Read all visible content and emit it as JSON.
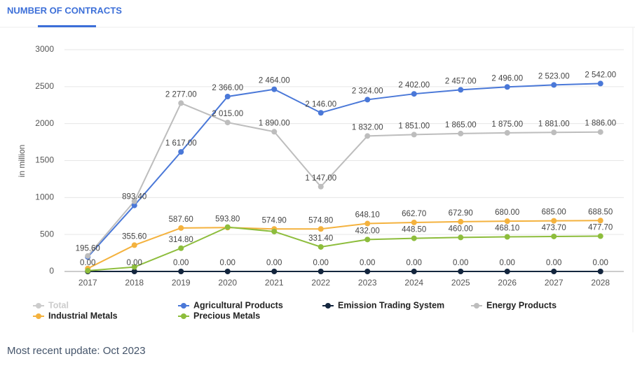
{
  "tab": "NUMBER OF CONTRACTS",
  "footer": "Most recent update: Oct 2023",
  "chart_data": {
    "type": "line",
    "y_label": "in million",
    "categories": [
      "2017",
      "2018",
      "2019",
      "2020",
      "2021",
      "2022",
      "2023",
      "2024",
      "2025",
      "2026",
      "2027",
      "2028"
    ],
    "ylim": [
      0,
      3000
    ],
    "yticks": [
      0,
      500,
      1000,
      1500,
      2000,
      2500,
      3000
    ],
    "grid": true,
    "hidden_series": [
      {
        "name": "Total",
        "color": "#cccccc"
      }
    ],
    "series": [
      {
        "name": "Agricultural Products",
        "color": "#4a78d8",
        "values": [
          195.6,
          893.4,
          1617,
          2366,
          2464,
          2146,
          2324,
          2402,
          2457,
          2496,
          2523,
          2542
        ],
        "value_labels": [
          "195.60",
          "893.40",
          "1 617.00",
          "2 366.00",
          "2 464.00",
          "2 146.00",
          "2 324.00",
          "2 402.00",
          "2 457.00",
          "2 496.00",
          "2 523.00",
          "2 542.00"
        ]
      },
      {
        "name": "Emission Trading System",
        "color": "#14263e",
        "values": [
          0,
          0,
          0,
          0,
          0,
          0,
          0,
          0,
          0,
          0,
          0,
          0
        ],
        "value_labels": [
          "0.00",
          "0.00",
          "0.00",
          "0.00",
          "0.00",
          "0.00",
          "0.00",
          "0.00",
          "0.00",
          "0.00",
          "0.00",
          "0.00"
        ]
      },
      {
        "name": "Energy Products",
        "color": "#bdbdbd",
        "values": [
          210,
          950,
          2277,
          2015,
          1890,
          1147,
          1832,
          1851,
          1865,
          1875,
          1881,
          1886
        ],
        "value_labels": [
          null,
          null,
          "2 277.00",
          "2 015.00",
          "1 890.00",
          "1 147.00",
          "1 832.00",
          "1 851.00",
          "1 865.00",
          "1 875.00",
          "1 881.00",
          "1 886.00"
        ]
      },
      {
        "name": "Industrial Metals",
        "color": "#f4b23e",
        "values": [
          40,
          355.6,
          587.6,
          593.8,
          574.9,
          574.8,
          648.1,
          662.7,
          672.9,
          680,
          685,
          688.5
        ],
        "value_labels": [
          null,
          "355.60",
          "587.60",
          "593.80",
          "574.90",
          "574.80",
          "648.10",
          "662.70",
          "672.90",
          "680.00",
          "685.00",
          "688.50"
        ]
      },
      {
        "name": "Precious Metals",
        "color": "#8dbd3c",
        "values": [
          10,
          60,
          314.8,
          600,
          540,
          331.4,
          432,
          448.5,
          460,
          468.1,
          473.7,
          477.7
        ],
        "value_labels": [
          null,
          null,
          "314.80",
          null,
          null,
          "331.40",
          "432.00",
          "448.50",
          "460.00",
          "468.10",
          "473.70",
          "477.70"
        ]
      }
    ]
  }
}
